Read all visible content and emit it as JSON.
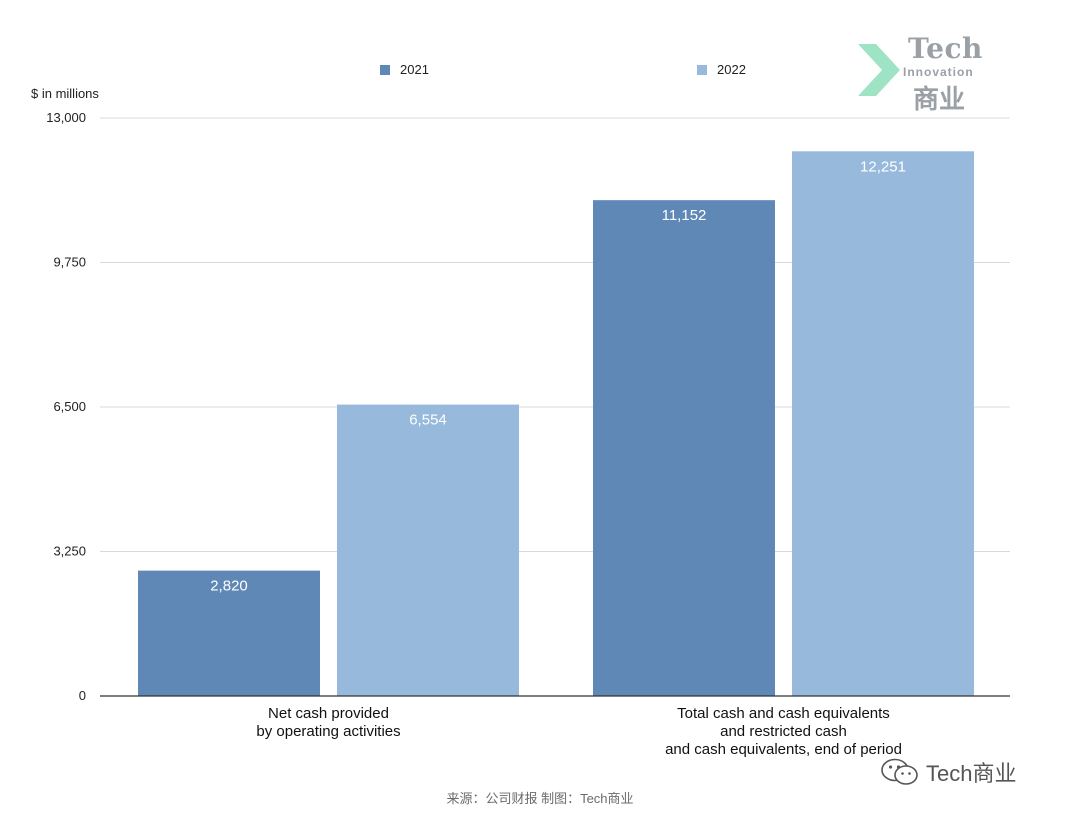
{
  "chart_data": {
    "type": "bar",
    "categories": [
      [
        "Net cash provided",
        "by operating activities"
      ],
      [
        "Total cash and cash equivalents",
        "and restricted cash",
        "and cash equivalents, end of period"
      ]
    ],
    "series": [
      {
        "name": "2021",
        "color": "#5f88b7",
        "values": [
          2820,
          11152
        ],
        "labels": [
          "2,820",
          "11,152"
        ]
      },
      {
        "name": "2022",
        "color": "#97b9db",
        "values": [
          6554,
          12251
        ],
        "labels": [
          "6,554",
          "12,251"
        ]
      }
    ],
    "ylabel": "$ in millions",
    "ylim": [
      0,
      13000
    ],
    "yticks": [
      0,
      3250,
      6500,
      9750,
      13000
    ],
    "ytick_labels": [
      "0",
      "3,250",
      "6,500",
      "9,750",
      "13,000"
    ],
    "grid": true,
    "legend_position": "top"
  },
  "source_text": "来源：公司财报 制图：Tech商业",
  "logo": {
    "line1": "Tech",
    "line2": "Innovation",
    "line3": "商业"
  },
  "wechat_label": "Tech商业",
  "colors": {
    "series_2021": "#5f88b7",
    "series_2022": "#97b9db",
    "grid": "#d9d9d9",
    "axis": "#333333"
  }
}
